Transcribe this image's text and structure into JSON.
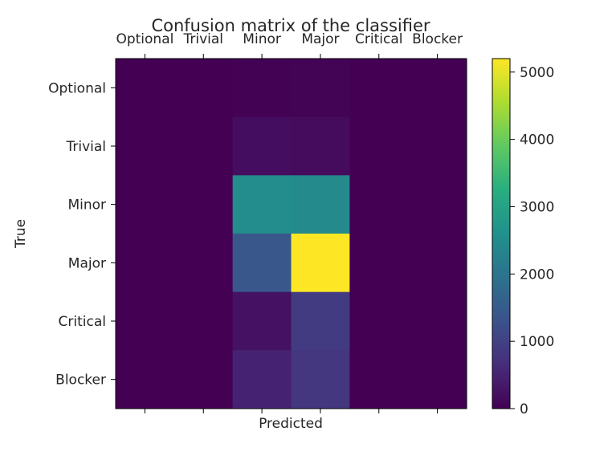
{
  "chart_data": {
    "type": "heatmap",
    "title": "Confusion matrix of the classifier",
    "xlabel": "Predicted",
    "ylabel": "True",
    "x_categories": [
      "Optional",
      "Trivial",
      "Minor",
      "Major",
      "Critical",
      "Blocker"
    ],
    "y_categories": [
      "Optional",
      "Trivial",
      "Minor",
      "Major",
      "Critical",
      "Blocker"
    ],
    "x_tick_position": "top",
    "values": [
      [
        0,
        0,
        10,
        40,
        0,
        0
      ],
      [
        0,
        0,
        180,
        160,
        0,
        0
      ],
      [
        0,
        0,
        2500,
        2450,
        0,
        0
      ],
      [
        0,
        0,
        1400,
        5200,
        0,
        0
      ],
      [
        0,
        0,
        250,
        900,
        0,
        0
      ],
      [
        0,
        0,
        500,
        800,
        0,
        0
      ]
    ],
    "colormap": "viridis",
    "colorbar": {
      "min": 0,
      "max": 5200,
      "ticks": [
        0,
        1000,
        2000,
        3000,
        4000,
        5000
      ]
    },
    "grid": false
  }
}
